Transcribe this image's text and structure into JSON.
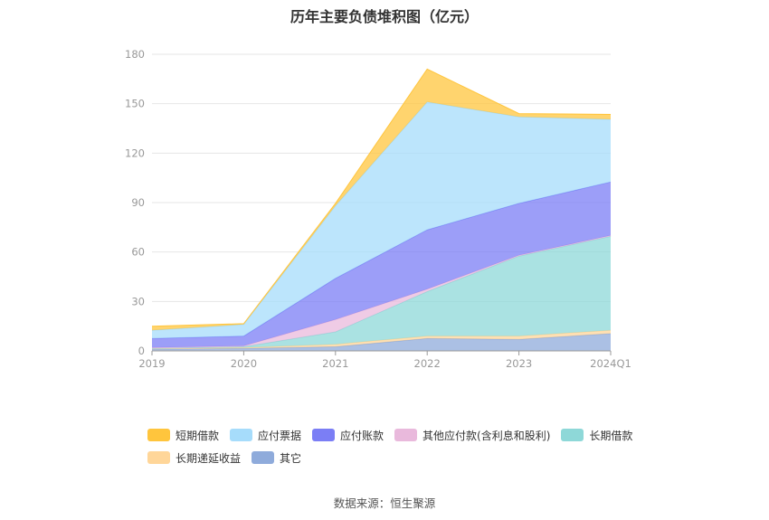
{
  "chart_data": {
    "type": "area",
    "title": "历年主要负债堆积图（亿元）",
    "categories": [
      "2019",
      "2020",
      "2021",
      "2022",
      "2023",
      "2024Q1"
    ],
    "ylim": [
      0,
      180
    ],
    "yticks": [
      "0",
      "30",
      "60",
      "90",
      "120",
      "150",
      "180"
    ],
    "grid": true,
    "legend_position": "bottom",
    "stacked": true,
    "series": [
      {
        "name": "其它",
        "color": "#8fabdb",
        "values": [
          1.0,
          1.5,
          2.5,
          7.5,
          7.0,
          10.5
        ]
      },
      {
        "name": "长期递延收益",
        "color": "#ffd699",
        "values": [
          0.5,
          0.5,
          1.5,
          1.5,
          2.0,
          2.0
        ]
      },
      {
        "name": "长期借款",
        "color": "#8ed8d8",
        "values": [
          0.0,
          0.5,
          7.5,
          27.0,
          48.5,
          57.0
        ]
      },
      {
        "name": "其他应付款(含利息和股利)",
        "color": "#e9b9dc",
        "values": [
          0.5,
          0.5,
          7.5,
          1.5,
          0.5,
          0.5
        ]
      },
      {
        "name": "应付账款",
        "color": "#7b7ef5",
        "values": [
          5.5,
          6.0,
          25.0,
          36.0,
          31.5,
          32.5
        ]
      },
      {
        "name": "应付票据",
        "color": "#a6dcfb",
        "values": [
          5.0,
          7.0,
          44.0,
          77.5,
          52.5,
          38.0
        ]
      },
      {
        "name": "短期借款",
        "color": "#ffc53d",
        "values": [
          2.5,
          0.5,
          1.5,
          20.0,
          2.0,
          3.0
        ]
      }
    ],
    "legend_order": [
      "短期借款",
      "应付票据",
      "应付账款",
      "其他应付款(含利息和股利)",
      "长期借款",
      "长期递延收益",
      "其它"
    ]
  },
  "source_text": "数据来源：恒生聚源"
}
